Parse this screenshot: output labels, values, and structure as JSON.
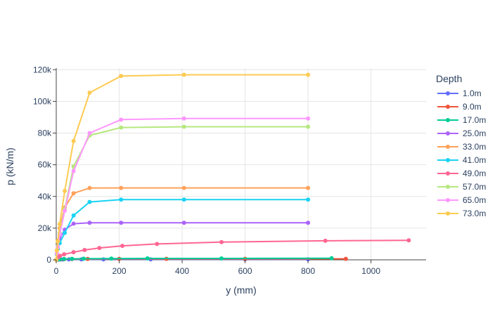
{
  "chart_data": {
    "type": "line",
    "xlabel": "y (mm)",
    "ylabel": "p (kN/m)",
    "xlim": [
      0,
      1175
    ],
    "ylim": [
      0,
      121000
    ],
    "x_ticks": [
      0,
      200,
      400,
      600,
      800,
      1000
    ],
    "y_ticks": [
      0,
      20000,
      40000,
      60000,
      80000,
      100000,
      120000
    ],
    "x_tick_labels": [
      "0",
      "200",
      "400",
      "600",
      "800",
      "1000"
    ],
    "y_tick_labels": [
      "0",
      "20k",
      "40k",
      "60k",
      "80k",
      "100k",
      "120k"
    ],
    "grid": true,
    "legend": {
      "title": "Depth",
      "placement": "right"
    },
    "series": [
      {
        "name": "1.0m",
        "color": "#636efa",
        "x": [
          0,
          2,
          5,
          10,
          20,
          40,
          80,
          150,
          300,
          600,
          800
        ],
        "y": [
          0,
          50,
          100,
          150,
          200,
          250,
          280,
          300,
          300,
          300,
          300
        ]
      },
      {
        "name": "9.0m",
        "color": "#ef553b",
        "x": [
          0,
          5,
          12,
          25,
          50,
          100,
          200,
          350,
          600,
          920
        ],
        "y": [
          0,
          150,
          300,
          400,
          500,
          550,
          600,
          600,
          600,
          600
        ]
      },
      {
        "name": "17.0m",
        "color": "#00cc96",
        "x": [
          0,
          5,
          12,
          25,
          50,
          87,
          175,
          290,
          525,
          875
        ],
        "y": [
          0,
          200,
          400,
          500,
          600,
          700,
          800,
          900,
          900,
          1000
        ]
      },
      {
        "name": "25.0m",
        "color": "#ab63fa",
        "x": [
          0,
          2,
          5,
          11,
          27,
          55,
          106,
          206,
          406,
          800
        ],
        "y": [
          0,
          4000,
          8500,
          13500,
          19000,
          22800,
          23400,
          23400,
          23400,
          23400
        ]
      },
      {
        "name": "33.0m",
        "color": "#ffa15a",
        "x": [
          0,
          2,
          5,
          11,
          27,
          55,
          106,
          206,
          406,
          800
        ],
        "y": [
          0,
          6000,
          12000,
          20000,
          33000,
          42000,
          45300,
          45400,
          45400,
          45400
        ]
      },
      {
        "name": "41.0m",
        "color": "#19d3f3",
        "x": [
          0,
          2,
          5,
          11,
          27,
          55,
          106,
          206,
          406,
          800
        ],
        "y": [
          0,
          3500,
          7000,
          10500,
          17000,
          28000,
          36500,
          38000,
          38000,
          38000
        ]
      },
      {
        "name": "49.0m",
        "color": "#ff6692",
        "x": [
          0,
          5,
          12,
          25,
          55,
          90,
          137,
          210,
          320,
          525,
          855,
          1120
        ],
        "y": [
          0,
          1500,
          2500,
          3500,
          4800,
          6200,
          7500,
          8800,
          10000,
          11200,
          12000,
          12300
        ]
      },
      {
        "name": "57.0m",
        "color": "#b6e880",
        "x": [
          0,
          2,
          5,
          11,
          27,
          55,
          106,
          206,
          406,
          800
        ],
        "y": [
          0,
          4000,
          8500,
          17000,
          32000,
          59000,
          78500,
          83500,
          84000,
          84000
        ]
      },
      {
        "name": "65.0m",
        "color": "#ff97ff",
        "x": [
          0,
          2,
          5,
          11,
          27,
          55,
          106,
          206,
          406,
          800
        ],
        "y": [
          0,
          4000,
          8000,
          16000,
          31000,
          56000,
          80000,
          88500,
          89200,
          89200
        ]
      },
      {
        "name": "73.0m",
        "color": "#fecb52",
        "x": [
          0,
          2,
          5,
          11,
          27,
          55,
          106,
          206,
          406,
          800
        ],
        "y": [
          0,
          6000,
          11500,
          22500,
          43500,
          75000,
          105500,
          116000,
          116800,
          116800
        ]
      }
    ]
  }
}
